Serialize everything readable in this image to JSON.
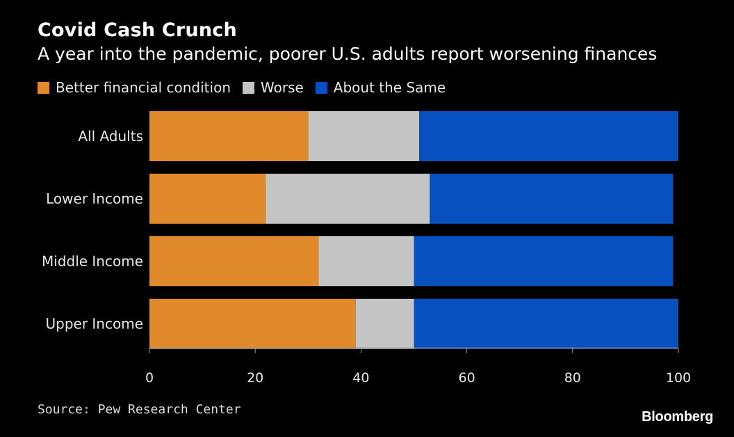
{
  "title": "Covid Cash Crunch",
  "subtitle": "A year into the pandemic, poorer U.S. adults report worsening finances",
  "source": "Source: Pew Research Center",
  "brand": "Bloomberg",
  "colors": {
    "better": "#e08a2c",
    "worse": "#c4c4c4",
    "same": "#0750c0",
    "background": "#000000"
  },
  "chart_data": {
    "type": "bar",
    "orientation": "horizontal",
    "stacked": true,
    "categories": [
      "All Adults",
      "Lower Income",
      "Middle Income",
      "Upper Income"
    ],
    "series": [
      {
        "name": "Better financial condition",
        "values": [
          30,
          22,
          32,
          39
        ],
        "color": "#e08a2c"
      },
      {
        "name": "Worse",
        "values": [
          21,
          31,
          18,
          11
        ],
        "color": "#c4c4c4"
      },
      {
        "name": "About the Same",
        "values": [
          49,
          46,
          49,
          50
        ],
        "color": "#0750c0"
      }
    ],
    "xlim": [
      0,
      100
    ],
    "xticks": [
      0,
      20,
      40,
      60,
      80,
      100
    ],
    "xlabel": "",
    "ylabel": "",
    "grid": false,
    "legend_position": "top-left"
  }
}
